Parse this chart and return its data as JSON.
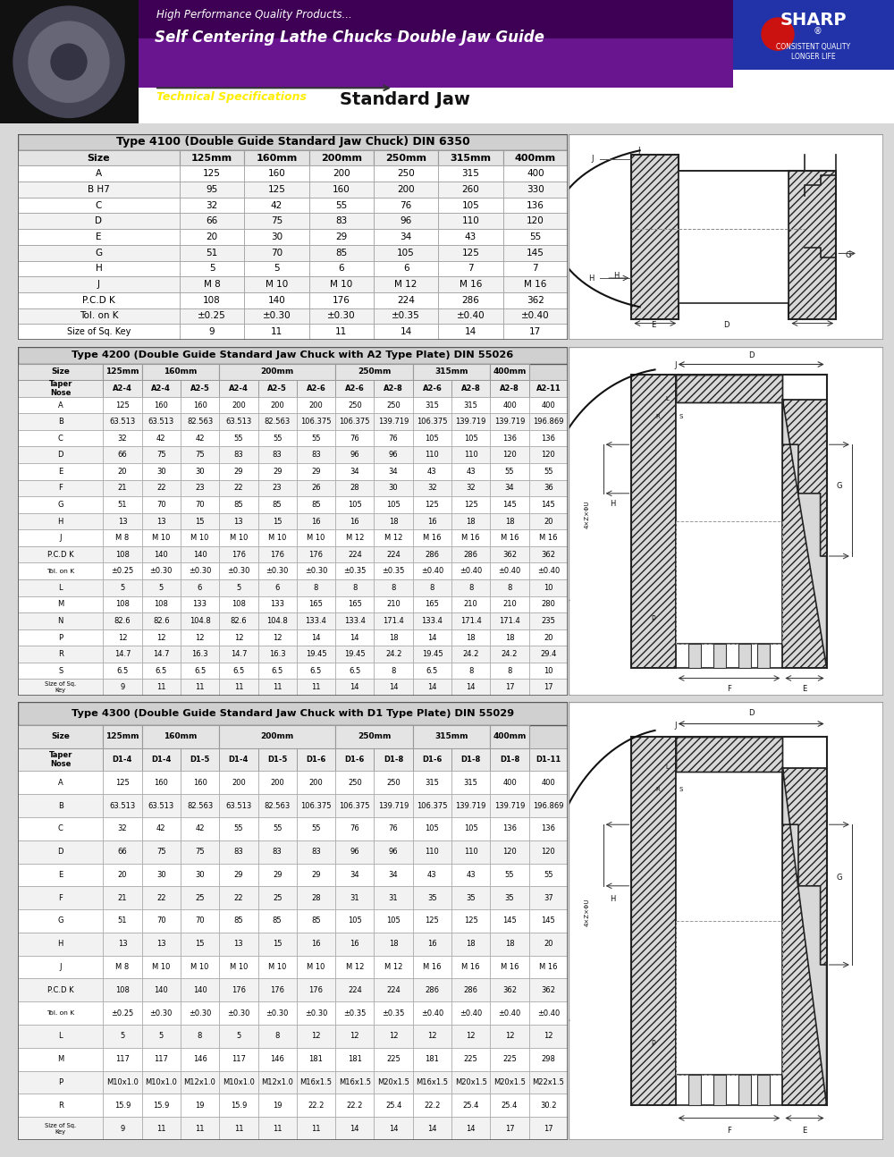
{
  "title_line1": "High Performance Quality Products...",
  "title_line2": "Self Centering Lathe Chucks Double Jaw Guide",
  "title_line3_left": "Technical Specifications",
  "title_line3_right": "Standard Jaw",
  "header_purple_dark": "#2d0040",
  "header_purple_mid": "#5c1080",
  "header_purple_light": "#9060b0",
  "header_bottom_white": "#ffffff",
  "sharp_blue": "#1a1aaa",
  "sharp_red": "#cc1111",
  "t1_title": "Type 4100 (Double Guide Standard Jaw Chuck) DIN 6350",
  "t1_col_headers": [
    "Size",
    "125mm",
    "160mm",
    "200mm",
    "250mm",
    "315mm",
    "400mm"
  ],
  "t1_rows": [
    [
      "A",
      "125",
      "160",
      "200",
      "250",
      "315",
      "400"
    ],
    [
      "B H7",
      "95",
      "125",
      "160",
      "200",
      "260",
      "330"
    ],
    [
      "C",
      "32",
      "42",
      "55",
      "76",
      "105",
      "136"
    ],
    [
      "D",
      "66",
      "75",
      "83",
      "96",
      "110",
      "120"
    ],
    [
      "E",
      "20",
      "30",
      "29",
      "34",
      "43",
      "55"
    ],
    [
      "G",
      "51",
      "70",
      "85",
      "105",
      "125",
      "145"
    ],
    [
      "H",
      "5",
      "5",
      "6",
      "6",
      "7",
      "7"
    ],
    [
      "J",
      "M 8",
      "M 10",
      "M 10",
      "M 12",
      "M 16",
      "M 16"
    ],
    [
      "P.C.D K",
      "108",
      "140",
      "176",
      "224",
      "286",
      "362"
    ],
    [
      "Tol. on K",
      "±0.25",
      "±0.30",
      "±0.30",
      "±0.35",
      "±0.40",
      "±0.40"
    ],
    [
      "Size of Sq. Key",
      "9",
      "11",
      "11",
      "14",
      "14",
      "17"
    ]
  ],
  "t2_title": "Type 4200 (Double Guide Standard Jaw Chuck with A2 Type Plate) DIN 55026",
  "t2_size_headers": [
    "Size",
    "125mm",
    "160mm",
    "",
    "200mm",
    "",
    "",
    "250mm",
    "",
    "315mm",
    "",
    "400mm"
  ],
  "t2_taper_headers": [
    "Taper\nNose",
    "A2-4",
    "A2-4",
    "A2-5",
    "A2-4",
    "A2-5",
    "A2-6",
    "A2-6",
    "A2-8",
    "A2-6",
    "A2-8",
    "A2-8",
    "A2-11"
  ],
  "t2_rows": [
    [
      "A",
      "125",
      "160",
      "160",
      "200",
      "200",
      "200",
      "250",
      "250",
      "315",
      "315",
      "400",
      "400"
    ],
    [
      "B",
      "63.513",
      "63.513",
      "82.563",
      "63.513",
      "82.563",
      "106.375",
      "106.375",
      "139.719",
      "106.375",
      "139.719",
      "139.719",
      "196.869"
    ],
    [
      "C",
      "32",
      "42",
      "42",
      "55",
      "55",
      "55",
      "76",
      "76",
      "105",
      "105",
      "136",
      "136"
    ],
    [
      "D",
      "66",
      "75",
      "75",
      "83",
      "83",
      "83",
      "96",
      "96",
      "110",
      "110",
      "120",
      "120"
    ],
    [
      "E",
      "20",
      "30",
      "30",
      "29",
      "29",
      "29",
      "34",
      "34",
      "43",
      "43",
      "55",
      "55"
    ],
    [
      "F",
      "21",
      "22",
      "23",
      "22",
      "23",
      "26",
      "28",
      "30",
      "32",
      "32",
      "34",
      "36"
    ],
    [
      "G",
      "51",
      "70",
      "70",
      "85",
      "85",
      "85",
      "105",
      "105",
      "125",
      "125",
      "145",
      "145"
    ],
    [
      "H",
      "13",
      "13",
      "15",
      "13",
      "15",
      "16",
      "16",
      "18",
      "16",
      "18",
      "18",
      "20"
    ],
    [
      "J",
      "M 8",
      "M 10",
      "M 10",
      "M 10",
      "M 10",
      "M 10",
      "M 12",
      "M 12",
      "M 16",
      "M 16",
      "M 16",
      "M 16"
    ],
    [
      "P.C.D K",
      "108",
      "140",
      "140",
      "176",
      "176",
      "176",
      "224",
      "224",
      "286",
      "286",
      "362",
      "362"
    ],
    [
      "Tol. on K",
      "±0.25",
      "±0.30",
      "±0.30",
      "±0.30",
      "±0.30",
      "±0.30",
      "±0.35",
      "±0.35",
      "±0.40",
      "±0.40",
      "±0.40",
      "±0.40"
    ],
    [
      "L",
      "5",
      "5",
      "6",
      "5",
      "6",
      "8",
      "8",
      "8",
      "8",
      "8",
      "8",
      "10"
    ],
    [
      "M",
      "108",
      "108",
      "133",
      "108",
      "133",
      "165",
      "165",
      "210",
      "165",
      "210",
      "210",
      "280"
    ],
    [
      "N",
      "82.6",
      "82.6",
      "104.8",
      "82.6",
      "104.8",
      "133.4",
      "133.4",
      "171.4",
      "133.4",
      "171.4",
      "171.4",
      "235"
    ],
    [
      "P",
      "12",
      "12",
      "12",
      "12",
      "12",
      "14",
      "14",
      "18",
      "14",
      "18",
      "18",
      "20"
    ],
    [
      "R",
      "14.7",
      "14.7",
      "16.3",
      "14.7",
      "16.3",
      "19.45",
      "19.45",
      "24.2",
      "19.45",
      "24.2",
      "24.2",
      "29.4"
    ],
    [
      "S",
      "6.5",
      "6.5",
      "6.5",
      "6.5",
      "6.5",
      "6.5",
      "6.5",
      "8",
      "6.5",
      "8",
      "8",
      "10"
    ],
    [
      "Size of Sq.\nKey",
      "9",
      "11",
      "11",
      "11",
      "11",
      "11",
      "14",
      "14",
      "14",
      "14",
      "17",
      "17"
    ]
  ],
  "t3_title": "Type 4300 (Double Guide Standard Jaw Chuck with D1 Type Plate) DIN 55029",
  "t3_taper_headers": [
    "Taper\nNose",
    "D1-4",
    "D1-4",
    "D1-5",
    "D1-4",
    "D1-5",
    "D1-6",
    "D1-6",
    "D1-8",
    "D1-6",
    "D1-8",
    "D1-8",
    "D1-11"
  ],
  "t3_rows": [
    [
      "A",
      "125",
      "160",
      "160",
      "200",
      "200",
      "200",
      "250",
      "250",
      "315",
      "315",
      "400",
      "400"
    ],
    [
      "B",
      "63.513",
      "63.513",
      "82.563",
      "63.513",
      "82.563",
      "106.375",
      "106.375",
      "139.719",
      "106.375",
      "139.719",
      "139.719",
      "196.869"
    ],
    [
      "C",
      "32",
      "42",
      "42",
      "55",
      "55",
      "55",
      "76",
      "76",
      "105",
      "105",
      "136",
      "136"
    ],
    [
      "D",
      "66",
      "75",
      "75",
      "83",
      "83",
      "83",
      "96",
      "96",
      "110",
      "110",
      "120",
      "120"
    ],
    [
      "E",
      "20",
      "30",
      "30",
      "29",
      "29",
      "29",
      "34",
      "34",
      "43",
      "43",
      "55",
      "55"
    ],
    [
      "F",
      "21",
      "22",
      "25",
      "22",
      "25",
      "28",
      "31",
      "31",
      "35",
      "35",
      "35",
      "37"
    ],
    [
      "G",
      "51",
      "70",
      "70",
      "85",
      "85",
      "85",
      "105",
      "105",
      "125",
      "125",
      "145",
      "145"
    ],
    [
      "H",
      "13",
      "13",
      "15",
      "13",
      "15",
      "16",
      "16",
      "18",
      "16",
      "18",
      "18",
      "20"
    ],
    [
      "J",
      "M 8",
      "M 10",
      "M 10",
      "M 10",
      "M 10",
      "M 10",
      "M 12",
      "M 12",
      "M 16",
      "M 16",
      "M 16",
      "M 16"
    ],
    [
      "P.C.D K",
      "108",
      "140",
      "140",
      "176",
      "176",
      "176",
      "224",
      "224",
      "286",
      "286",
      "362",
      "362"
    ],
    [
      "Tol. on K",
      "±0.25",
      "±0.30",
      "±0.30",
      "±0.30",
      "±0.30",
      "±0.30",
      "±0.35",
      "±0.35",
      "±0.40",
      "±0.40",
      "±0.40",
      "±0.40"
    ],
    [
      "L",
      "5",
      "5",
      "8",
      "5",
      "8",
      "12",
      "12",
      "12",
      "12",
      "12",
      "12",
      "12"
    ],
    [
      "M",
      "117",
      "117",
      "146",
      "117",
      "146",
      "181",
      "181",
      "225",
      "181",
      "225",
      "225",
      "298"
    ],
    [
      "P",
      "M10x1.0",
      "M10x1.0",
      "M12x1.0",
      "M10x1.0",
      "M12x1.0",
      "M16x1.5",
      "M16x1.5",
      "M20x1.5",
      "M16x1.5",
      "M20x1.5",
      "M20x1.5",
      "M22x1.5"
    ],
    [
      "R",
      "15.9",
      "15.9",
      "19",
      "15.9",
      "19",
      "22.2",
      "22.2",
      "25.4",
      "22.2",
      "25.4",
      "25.4",
      "30.2"
    ],
    [
      "Size of Sq.\nKey",
      "9",
      "11",
      "11",
      "11",
      "11",
      "11",
      "14",
      "14",
      "14",
      "14",
      "17",
      "17"
    ]
  ]
}
